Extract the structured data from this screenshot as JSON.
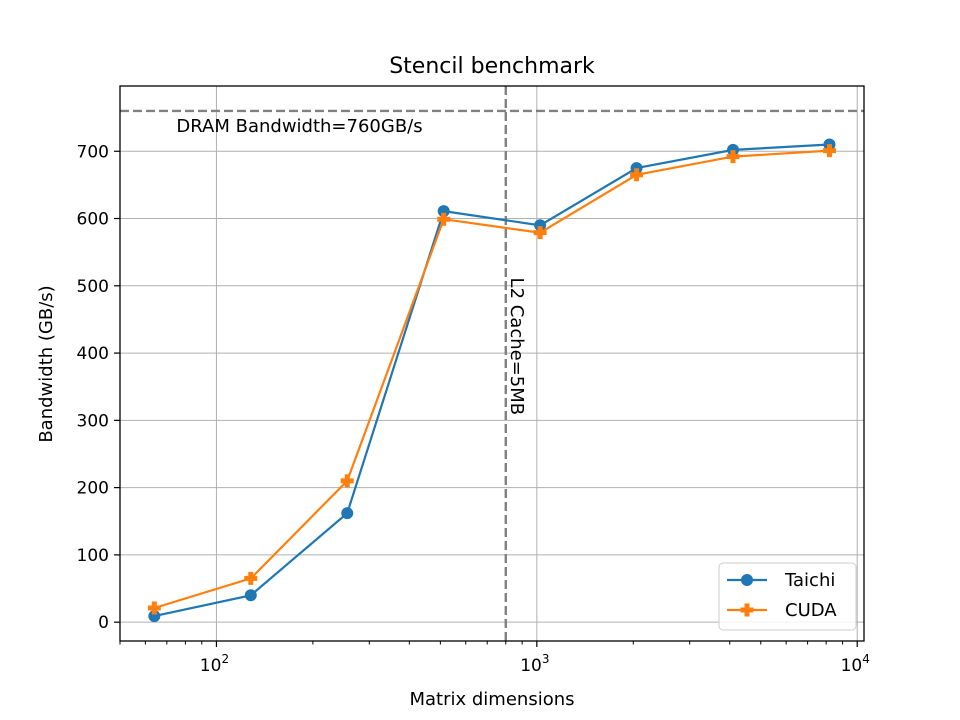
{
  "chart_data": {
    "type": "line",
    "title": "Stencil benchmark",
    "xlabel": "Matrix dimensions",
    "ylabel": "Bandwidth (GB/s)",
    "xscale": "log",
    "xlim": [
      50,
      10500
    ],
    "ylim": [
      -28,
      797
    ],
    "grid": true,
    "legend_position": "lower-right",
    "x_ticks": [
      {
        "value": 100,
        "base": "10",
        "exp": "2"
      },
      {
        "value": 1000,
        "base": "10",
        "exp": "3"
      },
      {
        "value": 10000,
        "base": "10",
        "exp": "4"
      }
    ],
    "y_ticks": [
      0,
      100,
      200,
      300,
      400,
      500,
      600,
      700
    ],
    "x": [
      64,
      128,
      256,
      512,
      1024,
      2048,
      4096,
      8192
    ],
    "series": [
      {
        "name": "Taichi",
        "color": "#1f77b4",
        "marker": "circle",
        "values": [
          9,
          40,
          162,
          611,
          590,
          675,
          702,
          710
        ]
      },
      {
        "name": "CUDA",
        "color": "#ff7f0e",
        "marker": "plus",
        "values": [
          21,
          65,
          210,
          599,
          579,
          665,
          692,
          701
        ]
      }
    ],
    "reference_lines": [
      {
        "orientation": "horizontal",
        "value": 760,
        "label": "DRAM Bandwidth=760GB/s",
        "color": "#808080"
      },
      {
        "orientation": "vertical",
        "value": 800,
        "label": "L2 Cache=5MB",
        "color": "#808080"
      }
    ]
  }
}
